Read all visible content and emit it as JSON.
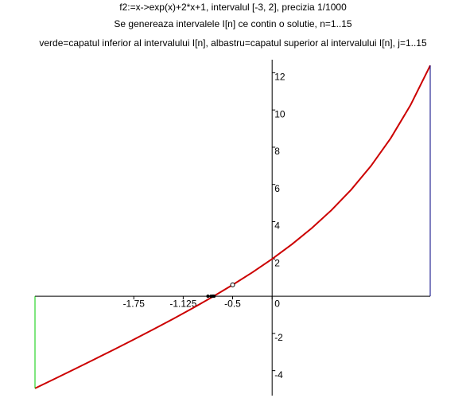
{
  "chart_data": {
    "type": "line",
    "title": "f2:=x->exp(x)+2*x+1, intervalul [-3, 2], precizia 1/1000",
    "subtitle": "Se genereaza intervalele I[n] ce contin o solutie, n=1..15",
    "annotation": "verde=capatul inferior al intervalului I[n], albastru=capatul superior al intervalului I[n], j=1..15",
    "xlim": [
      -3,
      2
    ],
    "ylim": [
      -5.34,
      12.7
    ],
    "xticks": [
      -1.75,
      -1.125,
      -0.5,
      0
    ],
    "yticks": [
      -4,
      -2,
      2,
      4,
      6,
      8,
      10,
      12
    ],
    "series": [
      {
        "color": "#cc0000",
        "x": [
          -3,
          -2.75,
          -2.5,
          -2.25,
          -2,
          -1.75,
          -1.5,
          -1.25,
          -1,
          -0.75,
          -0.5,
          -0.25,
          0,
          0.25,
          0.5,
          0.75,
          1,
          1.25,
          1.5,
          1.75,
          2
        ],
        "values": [
          -4.95,
          -4.436,
          -3.918,
          -3.395,
          -2.865,
          -2.326,
          -1.777,
          -1.213,
          -0.632,
          -0.028,
          0.6065,
          1.279,
          2,
          2.784,
          3.649,
          4.617,
          5.718,
          6.99,
          8.482,
          10.255,
          12.389
        ]
      },
      {
        "color": "#00cc00",
        "x": [
          -3,
          -3
        ],
        "values": [
          0,
          -4.95
        ]
      },
      {
        "color": "#000080",
        "x": [
          2,
          2
        ],
        "values": [
          0,
          12.389
        ]
      }
    ],
    "points": {
      "x": [
        -0.5,
        -0.8125,
        -0.734375,
        -0.7734375,
        -0.75390625,
        -0.744140625
      ],
      "values": [
        0.6065,
        0,
        0,
        0,
        0,
        0
      ]
    }
  }
}
